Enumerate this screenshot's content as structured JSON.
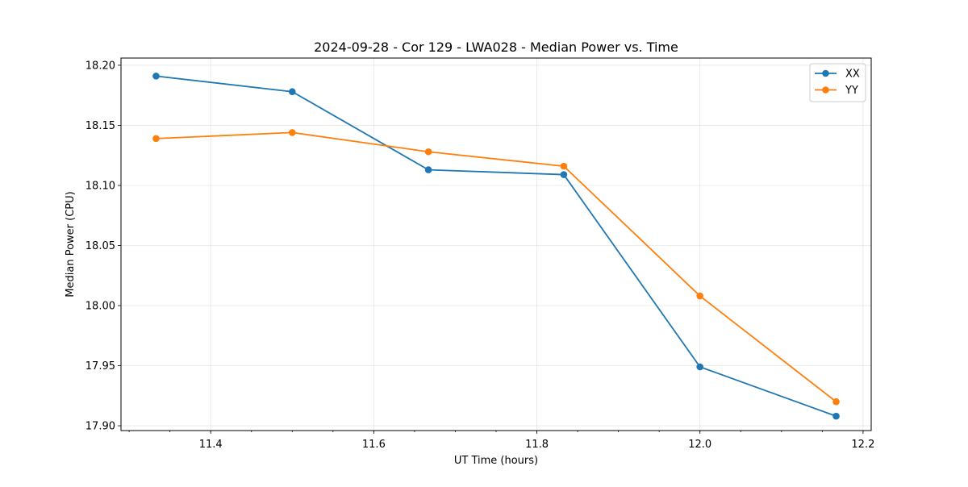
{
  "chart_data": {
    "type": "line",
    "title": "2024-09-28 - Cor 129 - LWA028 - Median Power vs. Time",
    "xlabel": "UT Time (hours)",
    "ylabel": "Median Power (CPU)",
    "xlim": [
      11.29,
      12.21
    ],
    "ylim": [
      17.896,
      18.206
    ],
    "x_ticks": [
      11.4,
      11.6,
      11.8,
      12.0,
      12.2
    ],
    "x_tick_labels": [
      "11.4",
      "11.6",
      "11.8",
      "12.0",
      "12.2"
    ],
    "y_ticks": [
      17.9,
      17.95,
      18.0,
      18.05,
      18.1,
      18.15,
      18.2
    ],
    "y_tick_labels": [
      "17.90",
      "17.95",
      "18.00",
      "18.05",
      "18.10",
      "18.15",
      "18.20"
    ],
    "grid": true,
    "legend_position": "top-right",
    "x": [
      11.333,
      11.5,
      11.667,
      11.833,
      12.0,
      12.167
    ],
    "series": [
      {
        "name": "XX",
        "color": "#1f77b4",
        "marker": "circle",
        "values": [
          18.191,
          18.178,
          18.113,
          18.109,
          17.949,
          17.908
        ]
      },
      {
        "name": "YY",
        "color": "#ff7f0e",
        "marker": "circle",
        "values": [
          18.139,
          18.144,
          18.128,
          18.116,
          18.008,
          17.92
        ]
      }
    ]
  }
}
